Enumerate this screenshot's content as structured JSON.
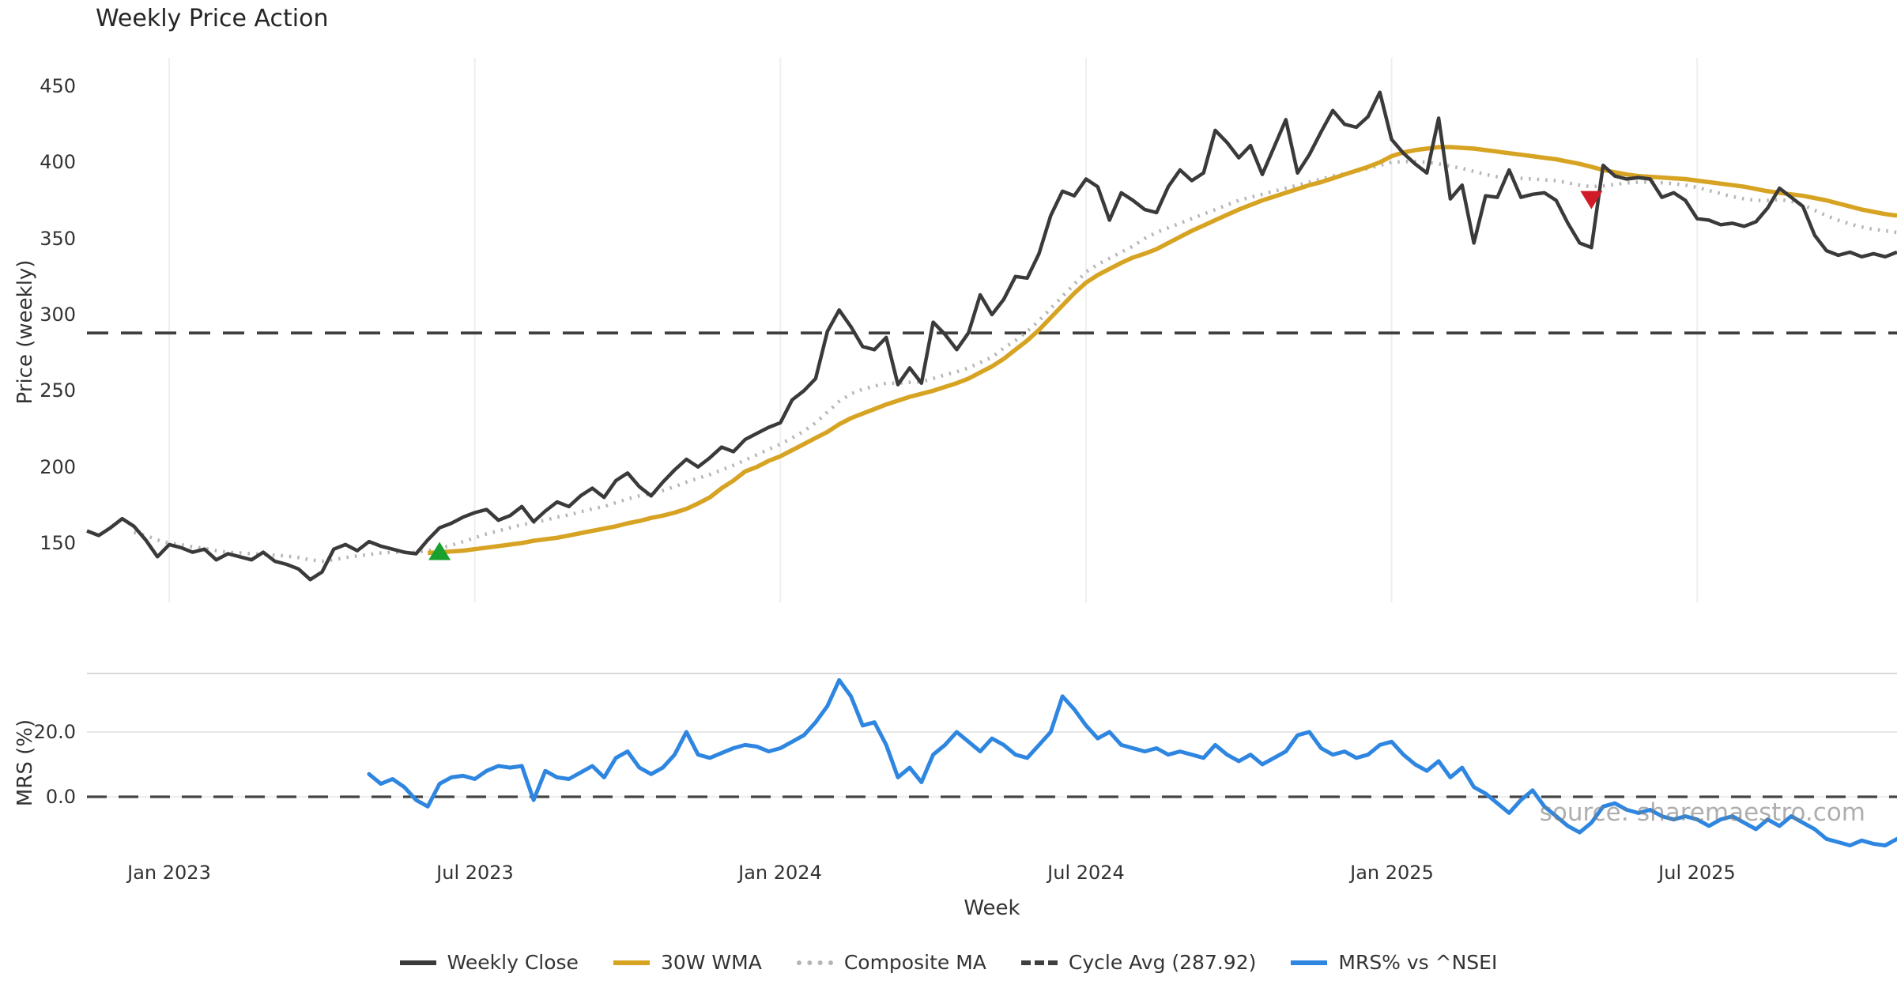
{
  "title": "Weekly Price Action",
  "watermark": "source: sharemaestro.com",
  "colors": {
    "weekly_close": "#3a3a3a",
    "wma_30w": "#d7a322",
    "composite_ma": "#b5b5b5",
    "cycle_avg": "#3f3f3f",
    "mrs_line": "#2e86e0",
    "buy_marker": "#18a12e",
    "sell_marker": "#d11a28",
    "grid_vertical": "#efefef",
    "grid_horizontal": "#e7e7e7",
    "panel_border": "#d9d9d9",
    "zero_dash": "#444444"
  },
  "axes": {
    "x": {
      "label": "Week",
      "ticks": [
        {
          "label": "Jan 2023",
          "week": 7
        },
        {
          "label": "Jul 2023",
          "week": 33
        },
        {
          "label": "Jan 2024",
          "week": 59
        },
        {
          "label": "Jul 2024",
          "week": 85
        },
        {
          "label": "Jan 2025",
          "week": 111
        },
        {
          "label": "Jul 2025",
          "week": 137
        }
      ]
    },
    "price": {
      "label": "Price (weekly)",
      "ticks": [
        450,
        400,
        350,
        300,
        250,
        200,
        150
      ]
    },
    "mrs": {
      "label": "MRS (%)",
      "ticks": [
        "20.0",
        "0.0"
      ]
    }
  },
  "legend": [
    {
      "label": "Weekly Close",
      "color": "#3a3a3a",
      "style": "solid"
    },
    {
      "label": "30W WMA",
      "color": "#d7a322",
      "style": "solid"
    },
    {
      "label": "Composite MA",
      "color": "#b5b5b5",
      "style": "dotted"
    },
    {
      "label": "Cycle Avg (287.92)",
      "color": "#3f3f3f",
      "style": "dashed"
    },
    {
      "label": "MRS% vs ^NSEI",
      "color": "#2e86e0",
      "style": "solid"
    }
  ],
  "chart_data": [
    {
      "type": "line",
      "panel": "price",
      "title": "Weekly Price Action",
      "xlabel": "Week",
      "ylabel": "Price (weekly)",
      "x_unit": "week_index",
      "x_range": [
        0,
        154
      ],
      "ylim": [
        110,
        468
      ],
      "grid": "vertical-only",
      "series": [
        {
          "name": "Weekly Close",
          "color": "#3a3a3a",
          "style": "solid",
          "width": 4.5,
          "start_week": 0,
          "values": [
            158,
            155,
            160,
            166,
            161,
            152,
            141,
            149,
            147,
            144,
            146,
            139,
            143,
            141,
            139,
            144,
            138,
            136,
            133,
            126,
            131,
            146,
            149,
            145,
            151,
            148,
            146,
            144,
            143,
            152,
            160,
            163,
            167,
            170,
            172,
            165,
            168,
            174,
            164,
            171,
            177,
            174,
            181,
            186,
            180,
            191,
            196,
            187,
            181,
            190,
            198,
            205,
            200,
            206,
            213,
            210,
            218,
            222,
            226,
            229,
            244,
            250,
            258,
            289,
            303,
            292,
            279,
            277,
            285,
            254,
            265,
            255,
            295,
            287,
            277,
            288,
            313,
            300,
            310,
            325,
            324,
            340,
            365,
            381,
            378,
            389,
            384,
            362,
            380,
            375,
            369,
            367,
            384,
            395,
            388,
            393,
            421,
            413,
            403,
            411,
            392,
            410,
            428,
            393,
            405,
            420,
            434,
            425,
            423,
            430,
            446,
            415,
            406,
            399,
            393,
            429,
            376,
            385,
            347,
            378,
            377,
            395,
            377,
            379,
            380,
            375,
            360,
            347,
            344,
            398,
            391,
            389,
            390,
            389,
            377,
            380,
            375,
            363,
            362,
            359,
            360,
            358,
            361,
            370,
            383,
            377,
            371,
            352,
            342,
            339,
            341,
            338,
            340,
            338,
            341
          ]
        },
        {
          "name": "30W WMA",
          "color": "#d7a322",
          "style": "solid",
          "width": 5.5,
          "start_week": 29,
          "values": [
            143.5,
            144,
            144.5,
            145,
            146,
            147,
            148,
            149,
            150,
            151.5,
            152.5,
            153.5,
            155,
            156.5,
            158,
            159.5,
            161,
            163,
            164.5,
            166.5,
            168,
            170,
            172.5,
            176,
            180,
            186,
            191,
            197,
            200,
            204,
            207,
            211,
            215,
            219,
            223,
            228,
            232,
            235,
            238,
            241,
            243.5,
            246,
            248,
            250,
            252.5,
            255,
            258,
            262,
            266,
            271,
            277,
            283,
            290,
            298,
            306,
            314,
            321,
            326,
            330,
            334,
            337.5,
            340,
            343,
            347,
            351,
            355,
            358.5,
            362,
            365.5,
            369,
            372,
            375,
            377.5,
            380,
            382.5,
            385,
            387,
            389.5,
            392,
            394.5,
            397,
            400,
            404,
            406.5,
            408,
            409,
            410,
            410,
            409.5,
            409,
            408,
            407,
            406,
            405,
            404,
            403,
            402,
            400.5,
            399,
            397,
            395,
            393.5,
            392,
            391,
            390.5,
            390,
            389.5,
            389,
            388,
            387,
            386,
            385,
            384,
            382.5,
            381,
            380,
            379,
            378,
            376.5,
            375,
            373,
            371,
            369,
            367.5,
            366,
            365
          ]
        },
        {
          "name": "Composite MA",
          "color": "#b5b5b5",
          "style": "dotted",
          "width": 4.5,
          "start_week": 4,
          "values": [
            157,
            155,
            152,
            150,
            149,
            147.5,
            146.5,
            145,
            144,
            143.5,
            143,
            142.5,
            142,
            141.5,
            140.5,
            139,
            138,
            139,
            140.5,
            141.5,
            142.5,
            143.5,
            144,
            144,
            144,
            145,
            146.5,
            148.5,
            151,
            153.5,
            156,
            158,
            160,
            162,
            163.5,
            165,
            167,
            168.5,
            170.5,
            172.5,
            174,
            176.5,
            179,
            181,
            182.5,
            184.5,
            187,
            190,
            192.5,
            195,
            198,
            201,
            204.5,
            208,
            211.5,
            215,
            219,
            223.5,
            229,
            236,
            243,
            248,
            251,
            253,
            255,
            255,
            255.5,
            256,
            258,
            260.5,
            262.5,
            265,
            268.5,
            272,
            278,
            283,
            289,
            296,
            304,
            312,
            320,
            328,
            333,
            337,
            341,
            345,
            350,
            354,
            357,
            360,
            363,
            366,
            369,
            372,
            375,
            377,
            379,
            381,
            383,
            385,
            387,
            389,
            391,
            392.5,
            394,
            396,
            398,
            400,
            400.5,
            400.5,
            400,
            399,
            397.5,
            396,
            394,
            392,
            390.5,
            390,
            389.5,
            389,
            388.5,
            388,
            386.5,
            385,
            384,
            384.5,
            385.5,
            386.5,
            387,
            387,
            386.5,
            386,
            385,
            383.5,
            381.5,
            379.5,
            377.5,
            376,
            375,
            375,
            375.5,
            374.5,
            372,
            368.5,
            365,
            362,
            359.5,
            357.5,
            356,
            355,
            354
          ]
        },
        {
          "name": "Cycle Avg",
          "type": "hline",
          "value": 287.92,
          "color": "#3f3f3f",
          "style": "dashed"
        }
      ],
      "markers": [
        {
          "name": "buy-signal",
          "shape": "triangle-up",
          "color": "#18a12e",
          "week": 30,
          "price": 144
        },
        {
          "name": "sell-signal",
          "shape": "triangle-down",
          "color": "#d11a28",
          "week": 128,
          "price": 376
        }
      ]
    },
    {
      "type": "line",
      "panel": "mrs",
      "ylabel": "MRS (%)",
      "ylim": [
        -19,
        38
      ],
      "yticks": [
        20.0,
        0.0
      ],
      "grid": "horizontal-only",
      "hlines": [
        {
          "value": 0,
          "style": "dashed",
          "color": "#444444"
        }
      ],
      "series": [
        {
          "name": "MRS% vs ^NSEI",
          "color": "#2e86e0",
          "style": "solid",
          "width": 5,
          "start_week": 24,
          "values": [
            7,
            4,
            5.5,
            3,
            -1,
            -3,
            4,
            6,
            6.5,
            5.5,
            8,
            9.5,
            9,
            9.5,
            -1,
            8,
            6,
            5.5,
            7.5,
            9.5,
            6,
            12,
            14,
            9,
            7,
            9,
            13,
            20,
            13,
            12,
            13.5,
            15,
            16,
            15.5,
            14,
            15,
            17,
            19,
            23,
            28,
            36,
            31,
            22,
            23,
            16,
            6,
            9,
            4.5,
            13,
            16,
            20,
            17,
            14,
            18,
            16,
            13,
            12,
            16,
            20,
            31,
            27,
            22,
            18,
            20,
            16,
            15,
            14,
            15,
            13,
            14,
            13,
            12,
            16,
            13,
            11,
            13,
            10,
            12,
            14,
            19,
            20,
            15,
            13,
            14,
            12,
            13,
            16,
            17,
            13,
            10,
            8,
            11,
            6,
            9,
            3,
            1,
            -2,
            -5,
            -1,
            2,
            -3,
            -6,
            -9,
            -11,
            -8,
            -3,
            -2,
            -4,
            -5,
            -4,
            -6,
            -7,
            -6,
            -7,
            -9,
            -7,
            -6,
            -8,
            -10,
            -7,
            -9,
            -6,
            -8,
            -10,
            -13,
            -14,
            -15,
            -13.5,
            -14.5,
            -15,
            -13
          ]
        }
      ]
    }
  ]
}
